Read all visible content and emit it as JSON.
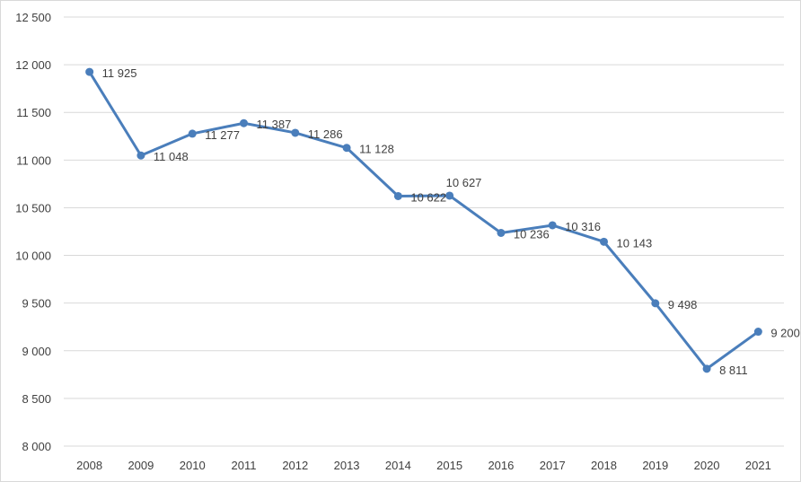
{
  "chart_data": {
    "type": "line",
    "title": "",
    "xlabel": "",
    "ylabel": "",
    "categories": [
      "2008",
      "2009",
      "2010",
      "2011",
      "2012",
      "2013",
      "2014",
      "2015",
      "2016",
      "2017",
      "2018",
      "2019",
      "2020",
      "2021"
    ],
    "series": [
      {
        "values": [
          11925,
          11048,
          11277,
          11387,
          11286,
          11128,
          10622,
          10627,
          10236,
          10316,
          10143,
          9498,
          8811,
          9200
        ],
        "labels": [
          "11 925",
          "11 048",
          "11 277",
          "11 387",
          "11 286",
          "11 128",
          "10 622",
          "10 627",
          "10 236",
          "10 316",
          "10 143",
          "9 498",
          "8 811",
          "9 200"
        ],
        "color": "#4a7ebb"
      }
    ],
    "ylim": [
      8000,
      12500
    ],
    "yticks": [
      8000,
      8500,
      9000,
      9500,
      10000,
      10500,
      11000,
      11500,
      12000,
      12500
    ],
    "ytick_labels": [
      "8 000",
      "8 500",
      "9 000",
      "9 500",
      "10 000",
      "10 500",
      "11 000",
      "11 500",
      "12 000",
      "12 500"
    ],
    "grid": true,
    "legend": "none",
    "gridline_color": "#d9d9d9"
  }
}
